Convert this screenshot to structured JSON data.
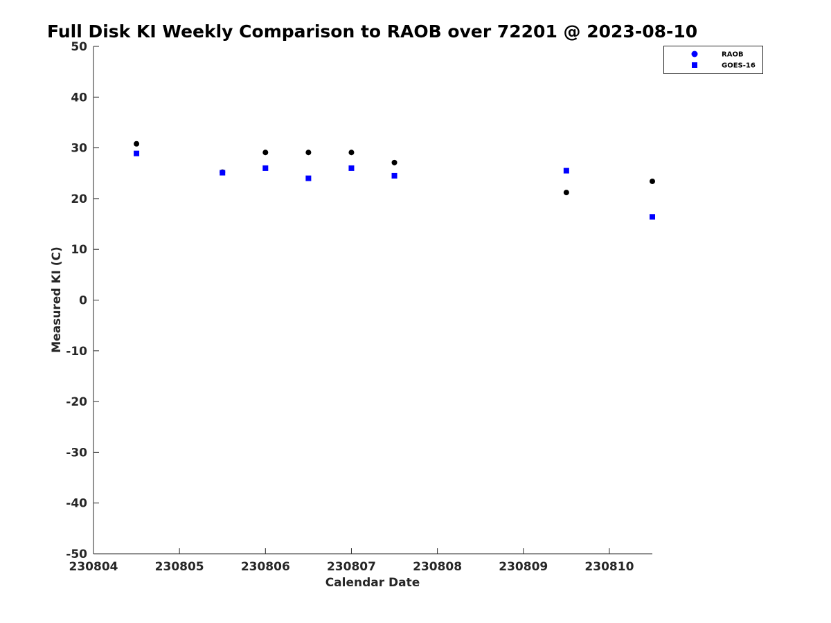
{
  "chart_data": {
    "type": "scatter",
    "title": "Full Disk KI Weekly Comparison to RAOB over 72201 @ 2023-08-10",
    "xlabel": "Calendar Date",
    "ylabel": "Measured KI (C)",
    "xlim": [
      "2023-08-04",
      "2023-08-10 12:00"
    ],
    "ylim": [
      -50,
      50
    ],
    "x_ticks": [
      "230804",
      "230805",
      "230806",
      "230807",
      "230808",
      "230809",
      "230810"
    ],
    "y_ticks": [
      50,
      40,
      30,
      20,
      10,
      0,
      -10,
      -20,
      -30,
      -40,
      -50
    ],
    "grid": false,
    "legend_position": "top-right",
    "series": [
      {
        "name": "RAOB",
        "marker": "circle",
        "color": "#000000",
        "legend_color": "#0000ff",
        "points": [
          {
            "x": "2023-08-04 12:00",
            "y": 30.8
          },
          {
            "x": "2023-08-05 12:00",
            "y": 25.2
          },
          {
            "x": "2023-08-06 00:00",
            "y": 29.1
          },
          {
            "x": "2023-08-06 12:00",
            "y": 29.1
          },
          {
            "x": "2023-08-07 00:00",
            "y": 29.1
          },
          {
            "x": "2023-08-07 12:00",
            "y": 27.1
          },
          {
            "x": "2023-08-09 12:00",
            "y": 21.2
          },
          {
            "x": "2023-08-10 12:00",
            "y": 23.4
          }
        ]
      },
      {
        "name": "GOES-16",
        "marker": "square",
        "color": "#0000ff",
        "points": [
          {
            "x": "2023-08-04 12:00",
            "y": 28.9
          },
          {
            "x": "2023-08-05 12:00",
            "y": 25.1
          },
          {
            "x": "2023-08-06 00:00",
            "y": 26.0
          },
          {
            "x": "2023-08-06 12:00",
            "y": 24.0
          },
          {
            "x": "2023-08-07 00:00",
            "y": 26.0
          },
          {
            "x": "2023-08-07 12:00",
            "y": 24.5
          },
          {
            "x": "2023-08-09 12:00",
            "y": 25.5
          },
          {
            "x": "2023-08-10 12:00",
            "y": 16.4
          }
        ]
      }
    ]
  }
}
